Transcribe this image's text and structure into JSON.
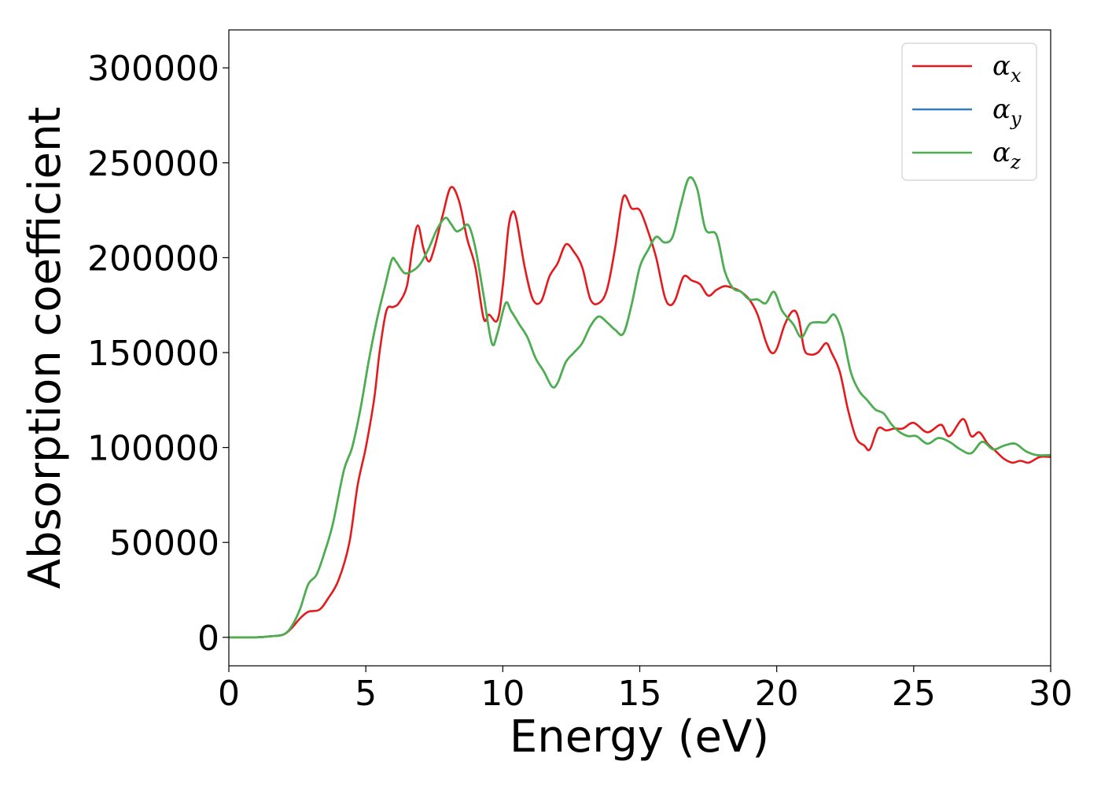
{
  "chart_data": {
    "type": "line",
    "title": "",
    "xlabel": "Energy (eV)",
    "ylabel": "Absorption coefficient",
    "xlim": [
      0,
      30
    ],
    "ylim": [
      -15000,
      320000
    ],
    "xticks": [
      0,
      5,
      10,
      15,
      20,
      25,
      30
    ],
    "xtick_labels": [
      "0",
      "5",
      "10",
      "15",
      "20",
      "25",
      "30"
    ],
    "yticks": [
      0,
      50000,
      100000,
      150000,
      200000,
      250000,
      300000
    ],
    "ytick_labels": [
      "0",
      "50000",
      "100000",
      "150000",
      "200000",
      "250000",
      "300000"
    ],
    "grid": false,
    "legend_position": "top-right",
    "series": [
      {
        "name": "α",
        "sub": "x",
        "color": "#e41a1c",
        "points": [
          [
            0,
            0
          ],
          [
            1,
            0
          ],
          [
            1.5,
            500
          ],
          [
            2,
            1500
          ],
          [
            2.3,
            5000
          ],
          [
            2.6,
            10000
          ],
          [
            2.9,
            13500
          ],
          [
            3.3,
            14500
          ],
          [
            3.6,
            20000
          ],
          [
            4,
            30000
          ],
          [
            4.4,
            50000
          ],
          [
            4.7,
            80000
          ],
          [
            5,
            100000
          ],
          [
            5.3,
            125000
          ],
          [
            5.5,
            150000
          ],
          [
            5.75,
            172000
          ],
          [
            6,
            174000
          ],
          [
            6.2,
            176000
          ],
          [
            6.5,
            185000
          ],
          [
            6.7,
            205000
          ],
          [
            6.9,
            217000
          ],
          [
            7.1,
            205000
          ],
          [
            7.3,
            198000
          ],
          [
            7.5,
            205000
          ],
          [
            7.8,
            222000
          ],
          [
            8.1,
            237000
          ],
          [
            8.4,
            230000
          ],
          [
            8.7,
            210000
          ],
          [
            9,
            195000
          ],
          [
            9.3,
            168000
          ],
          [
            9.5,
            170000
          ],
          [
            9.8,
            167000
          ],
          [
            10,
            185000
          ],
          [
            10.2,
            215000
          ],
          [
            10.35,
            224000
          ],
          [
            10.5,
            220000
          ],
          [
            10.8,
            195000
          ],
          [
            11.1,
            178000
          ],
          [
            11.4,
            177000
          ],
          [
            11.7,
            190000
          ],
          [
            12,
            197000
          ],
          [
            12.3,
            207000
          ],
          [
            12.6,
            203000
          ],
          [
            12.9,
            195000
          ],
          [
            13.2,
            178000
          ],
          [
            13.5,
            176000
          ],
          [
            13.8,
            183000
          ],
          [
            14.1,
            205000
          ],
          [
            14.4,
            232000
          ],
          [
            14.7,
            226000
          ],
          [
            15,
            225000
          ],
          [
            15.3,
            214000
          ],
          [
            15.6,
            200000
          ],
          [
            15.9,
            180000
          ],
          [
            16.1,
            175000
          ],
          [
            16.3,
            178000
          ],
          [
            16.6,
            190000
          ],
          [
            16.9,
            188000
          ],
          [
            17.2,
            186000
          ],
          [
            17.5,
            180000
          ],
          [
            17.8,
            183000
          ],
          [
            18.1,
            185000
          ],
          [
            18.4,
            184000
          ],
          [
            18.7,
            182000
          ],
          [
            19,
            178000
          ],
          [
            19.3,
            170000
          ],
          [
            19.6,
            156000
          ],
          [
            19.8,
            150000
          ],
          [
            20,
            152000
          ],
          [
            20.3,
            165000
          ],
          [
            20.6,
            172000
          ],
          [
            20.8,
            168000
          ],
          [
            21,
            152000
          ],
          [
            21.2,
            149000
          ],
          [
            21.5,
            150000
          ],
          [
            21.8,
            155000
          ],
          [
            22,
            150000
          ],
          [
            22.3,
            140000
          ],
          [
            22.6,
            120000
          ],
          [
            22.9,
            105000
          ],
          [
            23.2,
            101000
          ],
          [
            23.4,
            99000
          ],
          [
            23.7,
            110000
          ],
          [
            24,
            109000
          ],
          [
            24.3,
            110000
          ],
          [
            24.6,
            110000
          ],
          [
            25,
            113000
          ],
          [
            25.5,
            108000
          ],
          [
            26,
            112000
          ],
          [
            26.3,
            106000
          ],
          [
            26.8,
            115000
          ],
          [
            27.1,
            106000
          ],
          [
            27.4,
            108000
          ],
          [
            27.7,
            102000
          ],
          [
            28,
            98000
          ],
          [
            28.3,
            94000
          ],
          [
            28.6,
            92000
          ],
          [
            28.9,
            93000
          ],
          [
            29.2,
            92000
          ],
          [
            29.6,
            95000
          ],
          [
            30,
            95000
          ]
        ]
      },
      {
        "name": "α",
        "sub": "y",
        "color": "#377eb8",
        "points": [
          [
            0,
            0
          ],
          [
            1,
            0
          ],
          [
            1.5,
            500
          ],
          [
            2,
            1500
          ],
          [
            2.3,
            6000
          ],
          [
            2.6,
            15000
          ],
          [
            2.9,
            28000
          ],
          [
            3.2,
            33000
          ],
          [
            3.5,
            45000
          ],
          [
            3.8,
            60000
          ],
          [
            4.2,
            88000
          ],
          [
            4.5,
            100000
          ],
          [
            4.8,
            120000
          ],
          [
            5.1,
            145000
          ],
          [
            5.4,
            167000
          ],
          [
            5.7,
            185000
          ],
          [
            5.95,
            199000
          ],
          [
            6.1,
            198000
          ],
          [
            6.4,
            192000
          ],
          [
            6.7,
            193000
          ],
          [
            7,
            197000
          ],
          [
            7.3,
            205000
          ],
          [
            7.6,
            215000
          ],
          [
            7.9,
            221000
          ],
          [
            8.1,
            218000
          ],
          [
            8.3,
            214000
          ],
          [
            8.5,
            215000
          ],
          [
            8.75,
            217000
          ],
          [
            9,
            205000
          ],
          [
            9.3,
            180000
          ],
          [
            9.6,
            155000
          ],
          [
            9.8,
            160000
          ],
          [
            10.1,
            176000
          ],
          [
            10.3,
            172000
          ],
          [
            10.6,
            165000
          ],
          [
            10.9,
            158000
          ],
          [
            11.2,
            147000
          ],
          [
            11.5,
            140000
          ],
          [
            11.8,
            132000
          ],
          [
            12,
            134000
          ],
          [
            12.3,
            145000
          ],
          [
            12.6,
            150000
          ],
          [
            12.9,
            155000
          ],
          [
            13.2,
            164000
          ],
          [
            13.5,
            169000
          ],
          [
            13.8,
            166000
          ],
          [
            14.1,
            162000
          ],
          [
            14.4,
            160000
          ],
          [
            14.7,
            175000
          ],
          [
            15,
            195000
          ],
          [
            15.3,
            204000
          ],
          [
            15.6,
            211000
          ],
          [
            15.9,
            208000
          ],
          [
            16.2,
            211000
          ],
          [
            16.5,
            228000
          ],
          [
            16.8,
            242000
          ],
          [
            17.1,
            236000
          ],
          [
            17.4,
            215000
          ],
          [
            17.8,
            212000
          ],
          [
            18.1,
            193000
          ],
          [
            18.4,
            184000
          ],
          [
            18.7,
            182000
          ],
          [
            19,
            178000
          ],
          [
            19.3,
            178000
          ],
          [
            19.6,
            176000
          ],
          [
            19.9,
            182000
          ],
          [
            20.2,
            172000
          ],
          [
            20.6,
            165000
          ],
          [
            20.9,
            158000
          ],
          [
            21.2,
            165000
          ],
          [
            21.5,
            166000
          ],
          [
            21.8,
            166000
          ],
          [
            22.1,
            170000
          ],
          [
            22.4,
            160000
          ],
          [
            22.7,
            140000
          ],
          [
            23,
            130000
          ],
          [
            23.3,
            125000
          ],
          [
            23.6,
            120000
          ],
          [
            23.9,
            118000
          ],
          [
            24.2,
            112000
          ],
          [
            24.5,
            108000
          ],
          [
            24.8,
            106000
          ],
          [
            25.1,
            106000
          ],
          [
            25.5,
            102000
          ],
          [
            25.9,
            105000
          ],
          [
            26.3,
            103000
          ],
          [
            26.7,
            99000
          ],
          [
            27.1,
            97000
          ],
          [
            27.5,
            103000
          ],
          [
            27.9,
            99000
          ],
          [
            28.3,
            101000
          ],
          [
            28.7,
            102000
          ],
          [
            29.1,
            98000
          ],
          [
            29.5,
            96000
          ],
          [
            30,
            96000
          ]
        ]
      },
      {
        "name": "α",
        "sub": "z",
        "color": "#4daf4a",
        "points": [
          [
            0,
            0
          ],
          [
            1,
            0
          ],
          [
            1.5,
            500
          ],
          [
            2,
            1500
          ],
          [
            2.3,
            6000
          ],
          [
            2.6,
            15000
          ],
          [
            2.9,
            28000
          ],
          [
            3.2,
            33000
          ],
          [
            3.5,
            45000
          ],
          [
            3.8,
            60000
          ],
          [
            4.2,
            88000
          ],
          [
            4.5,
            100000
          ],
          [
            4.8,
            120000
          ],
          [
            5.1,
            145000
          ],
          [
            5.4,
            167000
          ],
          [
            5.7,
            185000
          ],
          [
            5.95,
            199000
          ],
          [
            6.1,
            198000
          ],
          [
            6.4,
            192000
          ],
          [
            6.7,
            193000
          ],
          [
            7,
            197000
          ],
          [
            7.3,
            205000
          ],
          [
            7.6,
            215000
          ],
          [
            7.9,
            221000
          ],
          [
            8.1,
            218000
          ],
          [
            8.3,
            214000
          ],
          [
            8.5,
            215000
          ],
          [
            8.75,
            217000
          ],
          [
            9,
            205000
          ],
          [
            9.3,
            180000
          ],
          [
            9.6,
            155000
          ],
          [
            9.8,
            160000
          ],
          [
            10.1,
            176000
          ],
          [
            10.3,
            172000
          ],
          [
            10.6,
            165000
          ],
          [
            10.9,
            158000
          ],
          [
            11.2,
            147000
          ],
          [
            11.5,
            140000
          ],
          [
            11.8,
            132000
          ],
          [
            12,
            134000
          ],
          [
            12.3,
            145000
          ],
          [
            12.6,
            150000
          ],
          [
            12.9,
            155000
          ],
          [
            13.2,
            164000
          ],
          [
            13.5,
            169000
          ],
          [
            13.8,
            166000
          ],
          [
            14.1,
            162000
          ],
          [
            14.4,
            160000
          ],
          [
            14.7,
            175000
          ],
          [
            15,
            195000
          ],
          [
            15.3,
            204000
          ],
          [
            15.6,
            211000
          ],
          [
            15.9,
            208000
          ],
          [
            16.2,
            211000
          ],
          [
            16.5,
            228000
          ],
          [
            16.8,
            242000
          ],
          [
            17.1,
            236000
          ],
          [
            17.4,
            215000
          ],
          [
            17.8,
            212000
          ],
          [
            18.1,
            193000
          ],
          [
            18.4,
            184000
          ],
          [
            18.7,
            182000
          ],
          [
            19,
            178000
          ],
          [
            19.3,
            178000
          ],
          [
            19.6,
            176000
          ],
          [
            19.9,
            182000
          ],
          [
            20.2,
            172000
          ],
          [
            20.6,
            165000
          ],
          [
            20.9,
            158000
          ],
          [
            21.2,
            165000
          ],
          [
            21.5,
            166000
          ],
          [
            21.8,
            166000
          ],
          [
            22.1,
            170000
          ],
          [
            22.4,
            160000
          ],
          [
            22.7,
            140000
          ],
          [
            23,
            130000
          ],
          [
            23.3,
            125000
          ],
          [
            23.6,
            120000
          ],
          [
            23.9,
            118000
          ],
          [
            24.2,
            112000
          ],
          [
            24.5,
            108000
          ],
          [
            24.8,
            106000
          ],
          [
            25.1,
            106000
          ],
          [
            25.5,
            102000
          ],
          [
            25.9,
            105000
          ],
          [
            26.3,
            103000
          ],
          [
            26.7,
            99000
          ],
          [
            27.1,
            97000
          ],
          [
            27.5,
            103000
          ],
          [
            27.9,
            99000
          ],
          [
            28.3,
            101000
          ],
          [
            28.7,
            102000
          ],
          [
            29.1,
            98000
          ],
          [
            29.5,
            96000
          ],
          [
            30,
            96000
          ]
        ]
      }
    ]
  }
}
